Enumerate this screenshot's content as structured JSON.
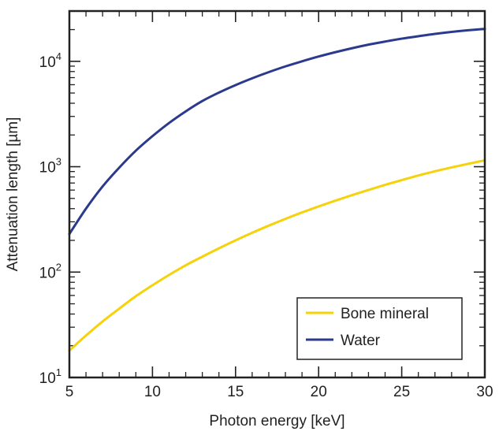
{
  "chart_data": {
    "type": "line",
    "title": "",
    "xlabel": "Photon energy [keV]",
    "ylabel": "Attenuation length [µm]",
    "xlim": [
      5,
      30
    ],
    "ylim": [
      10,
      30000
    ],
    "yscale": "log",
    "grid": false,
    "legend_position": "bottom-right",
    "x_ticks": [
      5,
      10,
      15,
      20,
      25,
      30
    ],
    "x_tick_labels": [
      "5",
      "10",
      "15",
      "20",
      "25",
      "30"
    ],
    "y_ticks": [
      {
        "value": 10,
        "base": "10",
        "exp": "1"
      },
      {
        "value": 100,
        "base": "10",
        "exp": "2"
      },
      {
        "value": 1000,
        "base": "10",
        "exp": "3"
      },
      {
        "value": 10000,
        "base": "10",
        "exp": "4"
      }
    ],
    "series": [
      {
        "name": "Bone mineral",
        "color": "#F5D20A",
        "x": [
          5,
          6,
          7,
          8,
          9,
          10,
          11,
          12,
          13,
          14,
          15,
          16,
          17,
          18,
          19,
          20,
          21,
          22,
          23,
          24,
          25,
          26,
          27,
          28,
          29,
          30
        ],
        "y": [
          18,
          25,
          34,
          45,
          59,
          75,
          94,
          116,
          140,
          168,
          200,
          236,
          276,
          320,
          368,
          420,
          476,
          537,
          602,
          672,
          746,
          825,
          905,
          985,
          1065,
          1150
        ]
      },
      {
        "name": "Water",
        "color": "#2B3A8C",
        "x": [
          5,
          6,
          7,
          8,
          9,
          10,
          11,
          12,
          13,
          14,
          15,
          16,
          17,
          18,
          19,
          20,
          21,
          22,
          23,
          24,
          25,
          26,
          27,
          28,
          29,
          30
        ],
        "y": [
          230,
          400,
          650,
          980,
          1420,
          1950,
          2600,
          3350,
          4200,
          5050,
          5950,
          6900,
          7900,
          8950,
          10000,
          11100,
          12200,
          13300,
          14400,
          15400,
          16400,
          17300,
          18200,
          19000,
          19700,
          20300
        ]
      }
    ]
  }
}
